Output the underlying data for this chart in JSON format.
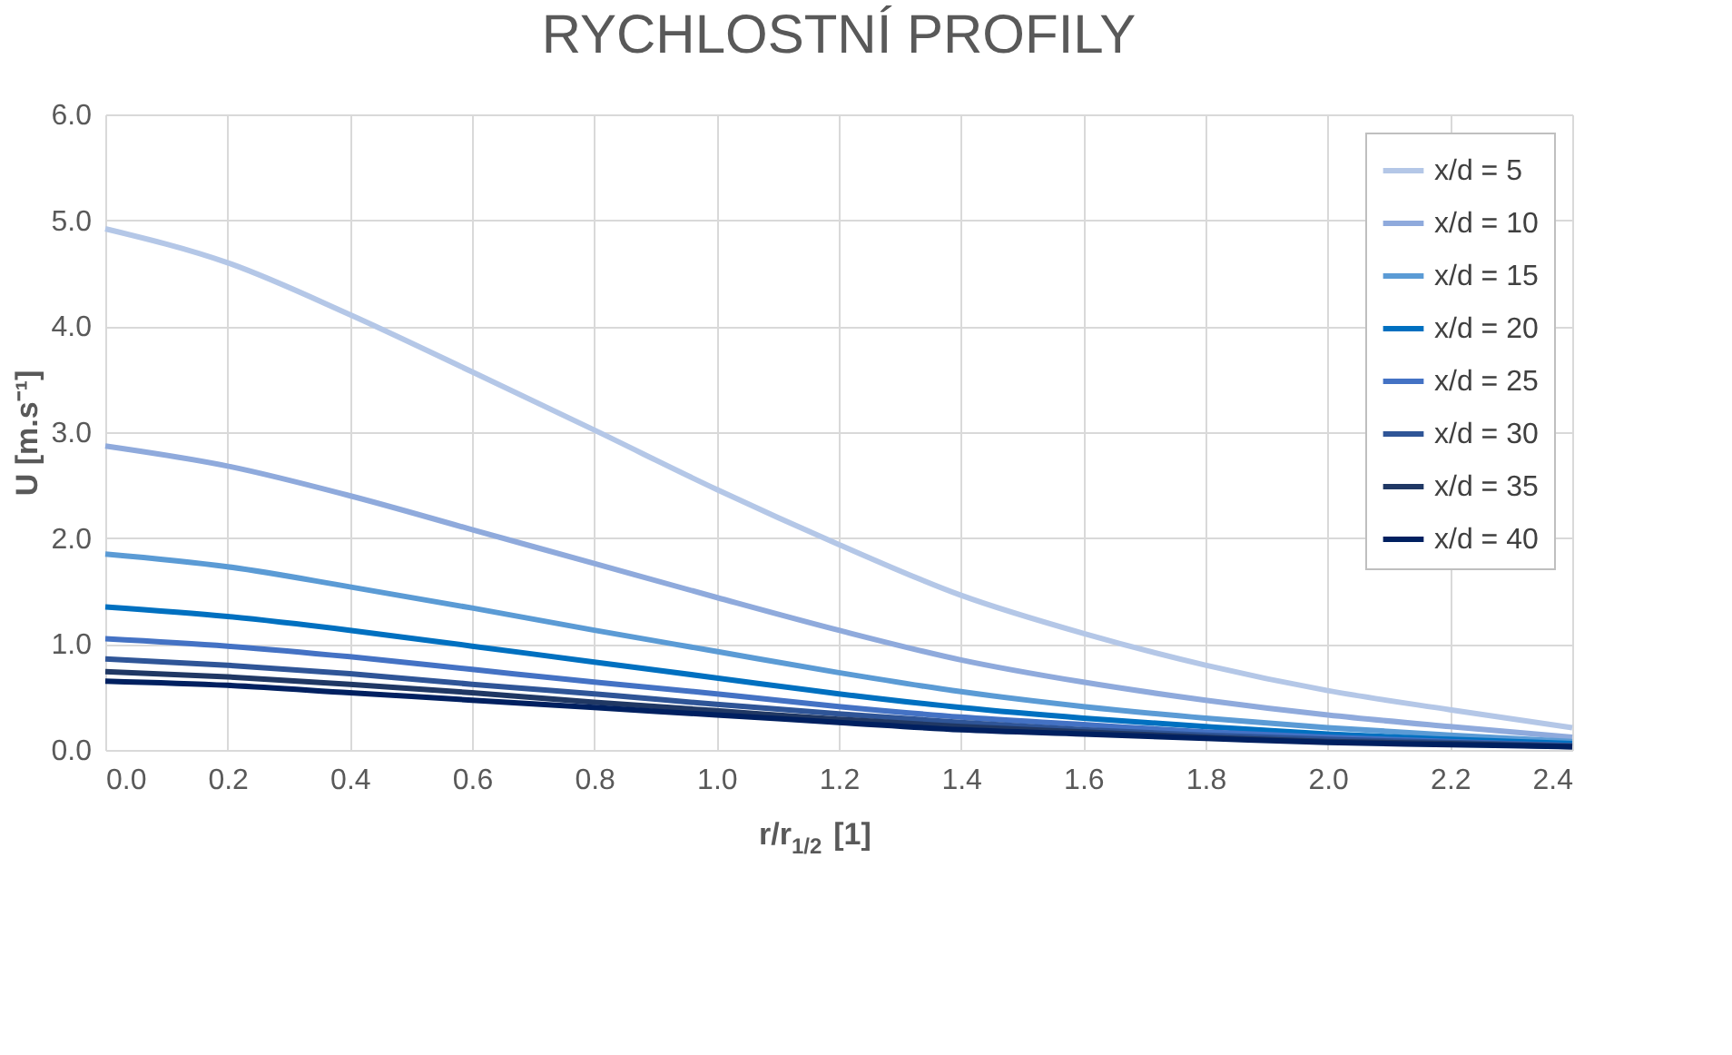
{
  "chart_data": {
    "type": "line",
    "title": "RYCHLOSTNÍ PROFILY",
    "xlabel": "r/r$_{1/2}$ [1]",
    "ylabel": "U [m.s⁻¹]",
    "x": [
      0.0,
      0.2,
      0.4,
      0.6,
      0.8,
      1.0,
      1.2,
      1.4,
      1.6,
      1.8,
      2.0,
      2.2,
      2.4
    ],
    "series": [
      {
        "name": "x/d = 5",
        "color": "#b4c7e7",
        "values": [
          4.92,
          4.6,
          4.11,
          3.57,
          3.02,
          2.46,
          1.94,
          1.46,
          1.1,
          0.8,
          0.56,
          0.38,
          0.21
        ]
      },
      {
        "name": "x/d = 10",
        "color": "#8faadc",
        "values": [
          2.87,
          2.68,
          2.4,
          2.08,
          1.76,
          1.44,
          1.13,
          0.85,
          0.64,
          0.47,
          0.33,
          0.22,
          0.12
        ]
      },
      {
        "name": "x/d = 15",
        "color": "#5b9bd5",
        "values": [
          1.85,
          1.73,
          1.54,
          1.34,
          1.13,
          0.93,
          0.73,
          0.55,
          0.41,
          0.3,
          0.21,
          0.14,
          0.08
        ]
      },
      {
        "name": "x/d = 20",
        "color": "#0070c0",
        "values": [
          1.35,
          1.26,
          1.13,
          0.98,
          0.83,
          0.68,
          0.53,
          0.4,
          0.3,
          0.22,
          0.15,
          0.1,
          0.06
        ]
      },
      {
        "name": "x/d = 25",
        "color": "#4472c4",
        "values": [
          1.05,
          0.98,
          0.88,
          0.76,
          0.64,
          0.53,
          0.41,
          0.31,
          0.24,
          0.17,
          0.12,
          0.08,
          0.04
        ]
      },
      {
        "name": "x/d = 30",
        "color": "#2f5597",
        "values": [
          0.86,
          0.8,
          0.72,
          0.62,
          0.53,
          0.43,
          0.34,
          0.26,
          0.19,
          0.14,
          0.1,
          0.07,
          0.04
        ]
      },
      {
        "name": "x/d = 35",
        "color": "#203864",
        "values": [
          0.74,
          0.69,
          0.62,
          0.54,
          0.45,
          0.37,
          0.29,
          0.22,
          0.17,
          0.12,
          0.08,
          0.06,
          0.03
        ]
      },
      {
        "name": "x/d = 40",
        "color": "#002060",
        "values": [
          0.65,
          0.61,
          0.54,
          0.47,
          0.4,
          0.33,
          0.26,
          0.19,
          0.15,
          0.11,
          0.07,
          0.05,
          0.03
        ]
      }
    ],
    "xlim": [
      0,
      2.4
    ],
    "xticks": [
      {
        "value": 0,
        "label": "0.0"
      },
      {
        "value": 0.2,
        "label": "0.2"
      },
      {
        "value": 0.4,
        "label": "0.4"
      },
      {
        "value": 0.6,
        "label": "0.6"
      },
      {
        "value": 0.8,
        "label": "0.8"
      },
      {
        "value": 1.0,
        "label": "1.0"
      },
      {
        "value": 1.2,
        "label": "1.2"
      },
      {
        "value": 1.4,
        "label": "1.4"
      },
      {
        "value": 1.6,
        "label": "1.6"
      },
      {
        "value": 1.8,
        "label": "1.8"
      },
      {
        "value": 2.0,
        "label": "2.0"
      },
      {
        "value": 2.2,
        "label": "2.2"
      },
      {
        "value": 2.4,
        "label": "2.4"
      }
    ],
    "ylim": [
      0,
      6
    ],
    "yticks": [
      {
        "value": 0,
        "label": "0.0"
      },
      {
        "value": 1,
        "label": "1.0"
      },
      {
        "value": 2,
        "label": "2.0"
      },
      {
        "value": 3,
        "label": "3.0"
      },
      {
        "value": 4,
        "label": "4.0"
      },
      {
        "value": 5,
        "label": "5.0"
      },
      {
        "value": 6,
        "label": "6.0"
      }
    ],
    "grid": true,
    "legend": "top right",
    "marker": "none",
    "line_style": "solid"
  }
}
